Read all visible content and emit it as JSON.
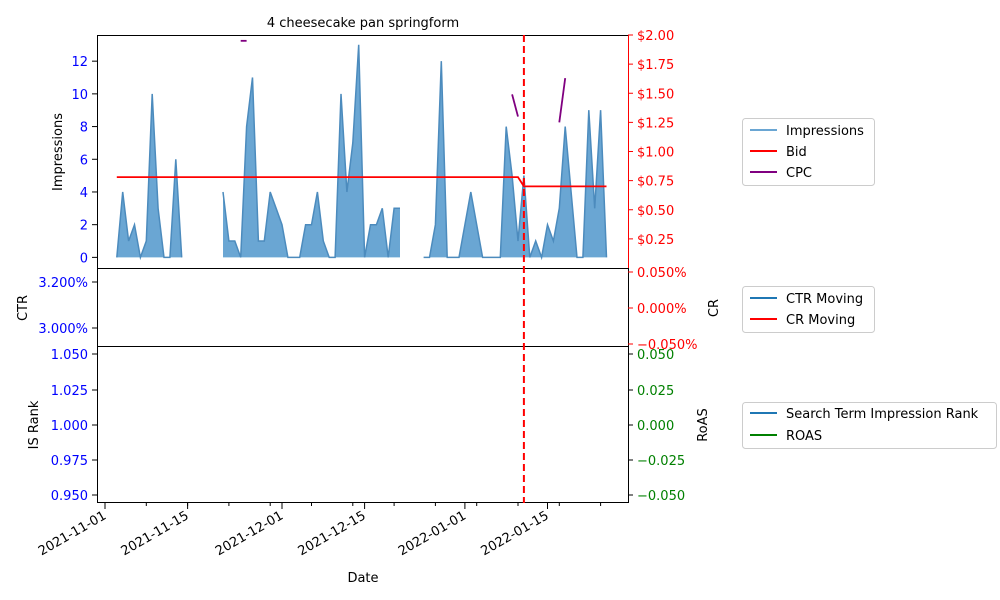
{
  "chart_data": {
    "type": "line",
    "title": "4 cheesecake pan springform",
    "xlabel": "Date",
    "x_ticks": [
      "2021-11-01",
      "2021-11-15",
      "2021-12-01",
      "2021-12-15",
      "2022-01-01",
      "2022-01-15"
    ],
    "marker_date": "2022-01-11",
    "panels": [
      {
        "name": "impressions-panel",
        "left_ylabel": "Impressions",
        "right_ylabel": "",
        "left_ylim": [
          -0.65,
          13.6
        ],
        "right_ylim": [
          0.0,
          2.0
        ],
        "left_ticks": [
          "0",
          "2",
          "4",
          "6",
          "8",
          "10",
          "12"
        ],
        "right_ticks": [
          "$0.25",
          "$0.50",
          "$0.75",
          "$1.00",
          "$1.25",
          "$1.50",
          "$1.75",
          "$2.00"
        ],
        "legend": [
          "Impressions",
          "Bid",
          "CPC"
        ],
        "series": [
          {
            "name": "Impressions",
            "axis": "left",
            "style": "area",
            "points": [
              [
                "2021-11-03",
                0
              ],
              [
                "2021-11-04",
                4
              ],
              [
                "2021-11-05",
                1
              ],
              [
                "2021-11-06",
                2
              ],
              [
                "2021-11-07",
                0
              ],
              [
                "2021-11-08",
                1
              ],
              [
                "2021-11-09",
                10
              ],
              [
                "2021-11-10",
                3
              ],
              [
                "2021-11-11",
                0
              ],
              [
                "2021-11-12",
                0
              ],
              [
                "2021-11-13",
                6
              ],
              [
                "2021-11-14",
                0
              ],
              [
                "2021-11-21",
                4
              ],
              [
                "2021-11-22",
                1
              ],
              [
                "2021-11-23",
                1
              ],
              [
                "2021-11-24",
                0
              ],
              [
                "2021-11-25",
                8
              ],
              [
                "2021-11-26",
                11
              ],
              [
                "2021-11-27",
                1
              ],
              [
                "2021-11-28",
                1
              ],
              [
                "2021-11-29",
                4
              ],
              [
                "2021-11-30",
                3
              ],
              [
                "2021-12-01",
                2
              ],
              [
                "2021-12-02",
                0
              ],
              [
                "2021-12-03",
                0
              ],
              [
                "2021-12-04",
                0
              ],
              [
                "2021-12-05",
                2
              ],
              [
                "2021-12-06",
                2
              ],
              [
                "2021-12-07",
                4
              ],
              [
                "2021-12-08",
                1
              ],
              [
                "2021-12-09",
                0
              ],
              [
                "2021-12-10",
                0
              ],
              [
                "2021-12-11",
                10
              ],
              [
                "2021-12-12",
                4
              ],
              [
                "2021-12-13",
                7
              ],
              [
                "2021-12-14",
                13
              ],
              [
                "2021-12-15",
                0
              ],
              [
                "2021-12-16",
                2
              ],
              [
                "2021-12-17",
                2
              ],
              [
                "2021-12-18",
                3
              ],
              [
                "2021-12-19",
                0
              ],
              [
                "2021-12-20",
                3
              ],
              [
                "2021-12-21",
                3
              ],
              [
                "2021-12-25",
                0
              ],
              [
                "2021-12-26",
                0
              ],
              [
                "2021-12-27",
                2
              ],
              [
                "2021-12-28",
                12
              ],
              [
                "2021-12-29",
                0
              ],
              [
                "2021-12-30",
                0
              ],
              [
                "2021-12-31",
                0
              ],
              [
                "2022-01-01",
                2
              ],
              [
                "2022-01-02",
                4
              ],
              [
                "2022-01-03",
                2
              ],
              [
                "2022-01-04",
                0
              ],
              [
                "2022-01-05",
                0
              ],
              [
                "2022-01-06",
                0
              ],
              [
                "2022-01-07",
                0
              ],
              [
                "2022-01-08",
                8
              ],
              [
                "2022-01-09",
                5
              ],
              [
                "2022-01-10",
                1
              ],
              [
                "2022-01-11",
                5
              ],
              [
                "2022-01-12",
                0
              ],
              [
                "2022-01-13",
                1
              ],
              [
                "2022-01-14",
                0
              ],
              [
                "2022-01-15",
                2
              ],
              [
                "2022-01-16",
                1
              ],
              [
                "2022-01-17",
                3
              ],
              [
                "2022-01-18",
                8
              ],
              [
                "2022-01-19",
                4
              ],
              [
                "2022-01-20",
                0
              ],
              [
                "2022-01-21",
                0
              ],
              [
                "2022-01-22",
                9
              ],
              [
                "2022-01-23",
                3
              ],
              [
                "2022-01-24",
                9
              ],
              [
                "2022-01-25",
                0
              ]
            ]
          },
          {
            "name": "Bid",
            "axis": "right",
            "color": "#ff0000",
            "points": [
              [
                "2021-11-03",
                0.78
              ],
              [
                "2022-01-10",
                0.78
              ],
              [
                "2022-01-11",
                0.7
              ],
              [
                "2022-01-25",
                0.7
              ]
            ]
          },
          {
            "name": "CPC",
            "axis": "right",
            "color": "#800080",
            "segments": [
              [
                [
                  "2021-11-24",
                  1.95
                ],
                [
                  "2021-11-25",
                  1.95
                ]
              ],
              [
                [
                  "2022-01-09",
                  1.49
                ],
                [
                  "2022-01-10",
                  1.3
                ]
              ],
              [
                [
                  "2022-01-17",
                  1.25
                ],
                [
                  "2022-01-18",
                  1.63
                ]
              ]
            ]
          }
        ]
      },
      {
        "name": "ctr-panel",
        "left_ylabel": "CTR",
        "right_ylabel": "CR",
        "left_ticks": [
          "3.000%",
          "3.200%"
        ],
        "right_ticks": [
          "−0.050%",
          "0.000%",
          "0.050%"
        ],
        "legend": [
          "CTR Moving",
          "CR Moving"
        ],
        "series": []
      },
      {
        "name": "rank-panel",
        "left_ylabel": "IS Rank",
        "right_ylabel": "RoAS",
        "left_ticks": [
          "0.950",
          "0.975",
          "1.000",
          "1.025",
          "1.050"
        ],
        "right_ticks": [
          "−0.050",
          "−0.025",
          "0.000",
          "0.025",
          "0.050"
        ],
        "legend": [
          "Search Term Impression Rank",
          "ROAS"
        ],
        "series": []
      }
    ]
  },
  "colors": {
    "impressions_fill": "#6aa6d3",
    "impressions_line": "#4c8bbd",
    "ctr": "#1f77b4",
    "bid": "#ff0000",
    "cpc": "#800080",
    "roas": "#008000",
    "left_tick": "#0000ff",
    "right_tick_ctr": "#ff0000",
    "right_tick_rank": "#008000"
  }
}
